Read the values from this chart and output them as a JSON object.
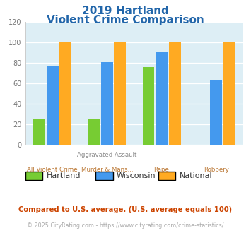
{
  "title_line1": "2019 Hartland",
  "title_line2": "Violent Crime Comparison",
  "cat_top_labels": [
    "",
    "Aggravated Assault",
    "",
    ""
  ],
  "cat_bot_labels": [
    "All Violent Crime",
    "Murder & Mans...",
    "Rape",
    "Robbery"
  ],
  "series": {
    "Hartland": [
      25,
      25,
      76,
      0
    ],
    "Wisconsin": [
      77,
      81,
      91,
      63
    ],
    "National": [
      100,
      100,
      100,
      100
    ]
  },
  "colors": {
    "Hartland": "#77cc33",
    "Wisconsin": "#4499ee",
    "National": "#ffaa22"
  },
  "ylim": [
    0,
    120
  ],
  "yticks": [
    0,
    20,
    40,
    60,
    80,
    100,
    120
  ],
  "title_color": "#2266aa",
  "bg_color": "#ddeef5",
  "cat_top_color": "#888888",
  "cat_bot_color": "#bb7733",
  "footnote": "Compared to U.S. average. (U.S. average equals 100)",
  "footnote2": "© 2025 CityRating.com - https://www.cityrating.com/crime-statistics/",
  "footnote_color": "#cc4400",
  "footnote2_color": "#aaaaaa",
  "legend_labels": [
    "Hartland",
    "Wisconsin",
    "National"
  ]
}
